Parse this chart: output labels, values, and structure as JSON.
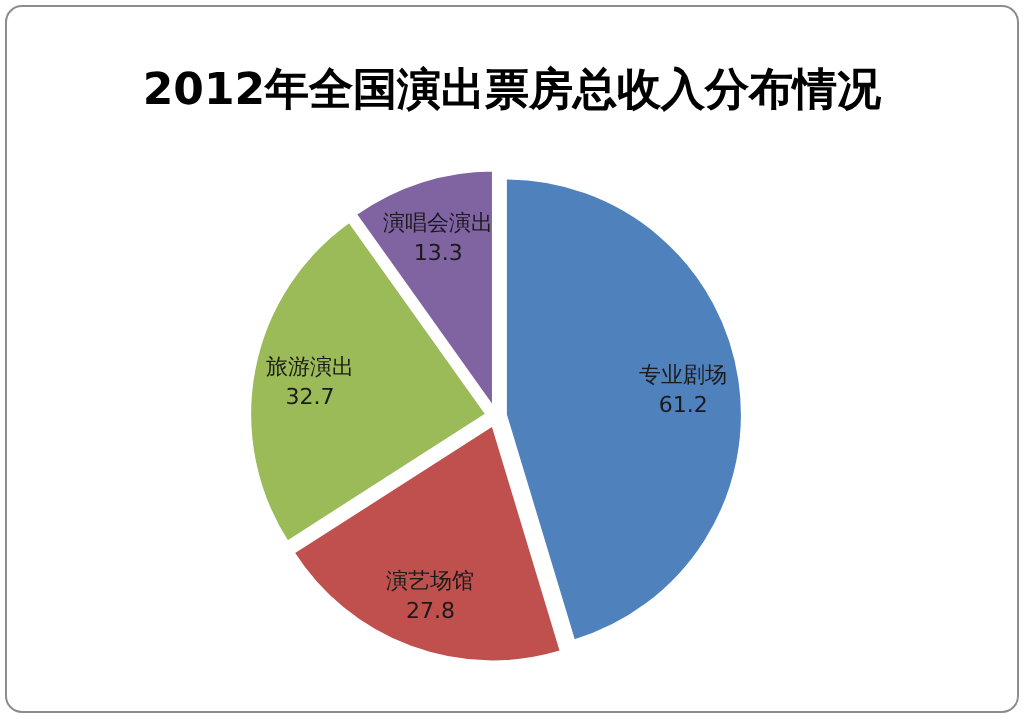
{
  "chart_data": {
    "type": "pie",
    "title": "2012年全国演出票房总收入分布情况",
    "categories": [
      "专业剧场",
      "演艺场馆",
      "旅游演出",
      "演唱会演出"
    ],
    "values": [
      61.2,
      27.8,
      32.7,
      13.3
    ],
    "colors": [
      "#4f81bd",
      "#c0504d",
      "#9bbb59",
      "#8064a2"
    ],
    "data_labels": true
  }
}
